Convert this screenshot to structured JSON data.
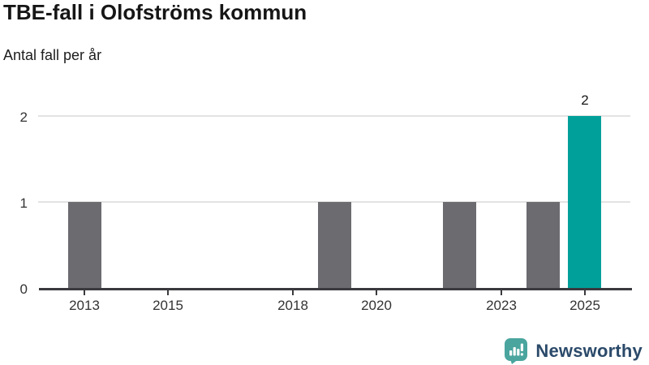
{
  "chart_data": {
    "type": "bar",
    "title": "TBE-fall i Olofströms kommun",
    "subtitle": "Antal fall per år",
    "x": [
      2012,
      2013,
      2014,
      2015,
      2016,
      2017,
      2018,
      2019,
      2020,
      2021,
      2022,
      2023,
      2024,
      2025
    ],
    "values": [
      0,
      1,
      0,
      0,
      0,
      0,
      0,
      1,
      0,
      0,
      1,
      0,
      1,
      2
    ],
    "xlabel": "",
    "ylabel": "",
    "xlim": [
      2011.9,
      2026.1
    ],
    "ylim": [
      0,
      2
    ],
    "yticks": [
      0,
      1,
      2
    ],
    "xticks": [
      2013,
      2015,
      2018,
      2020,
      2023,
      2025
    ],
    "grid": "horizontal-y",
    "legend": "none",
    "bar_color": "#6b6b70",
    "highlight_bar": {
      "x": 2025,
      "color": "#00a09a",
      "label": "2"
    },
    "axis_color": "#3a3a3e",
    "gridline_color": "#e3e3e3",
    "tick_text_color": "#333333",
    "background": "#ffffff"
  },
  "footer": {
    "brand": "Newsworthy",
    "icon": "newsworthy-speech-bubble-chart-icon",
    "icon_color": "#4ba59f",
    "brand_color": "#2b4a6a"
  }
}
